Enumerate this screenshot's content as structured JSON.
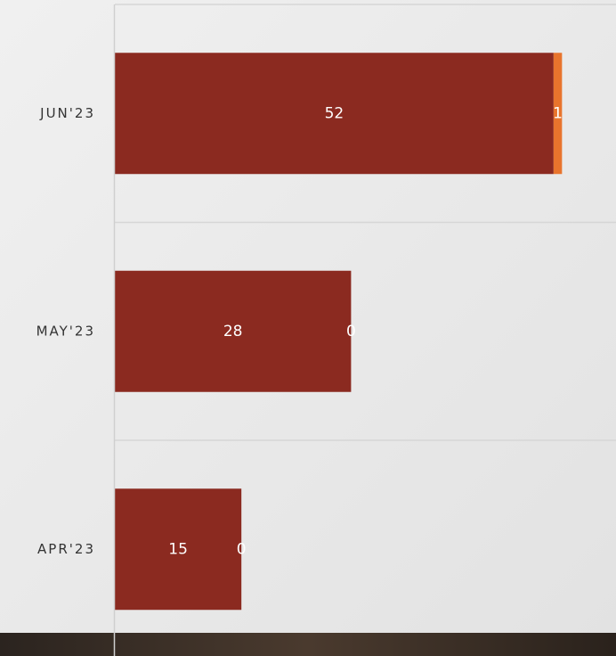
{
  "chart_data": {
    "type": "stacked-barh",
    "categories": [
      "JUN'23",
      "MAY'23",
      "APR'23"
    ],
    "series": [
      {
        "color": "#8b2a20",
        "values": [
          52,
          28,
          15
        ]
      },
      {
        "color": "#e8742d",
        "values": [
          1,
          0,
          0
        ]
      }
    ],
    "xlim": [
      0,
      59.4
    ]
  }
}
